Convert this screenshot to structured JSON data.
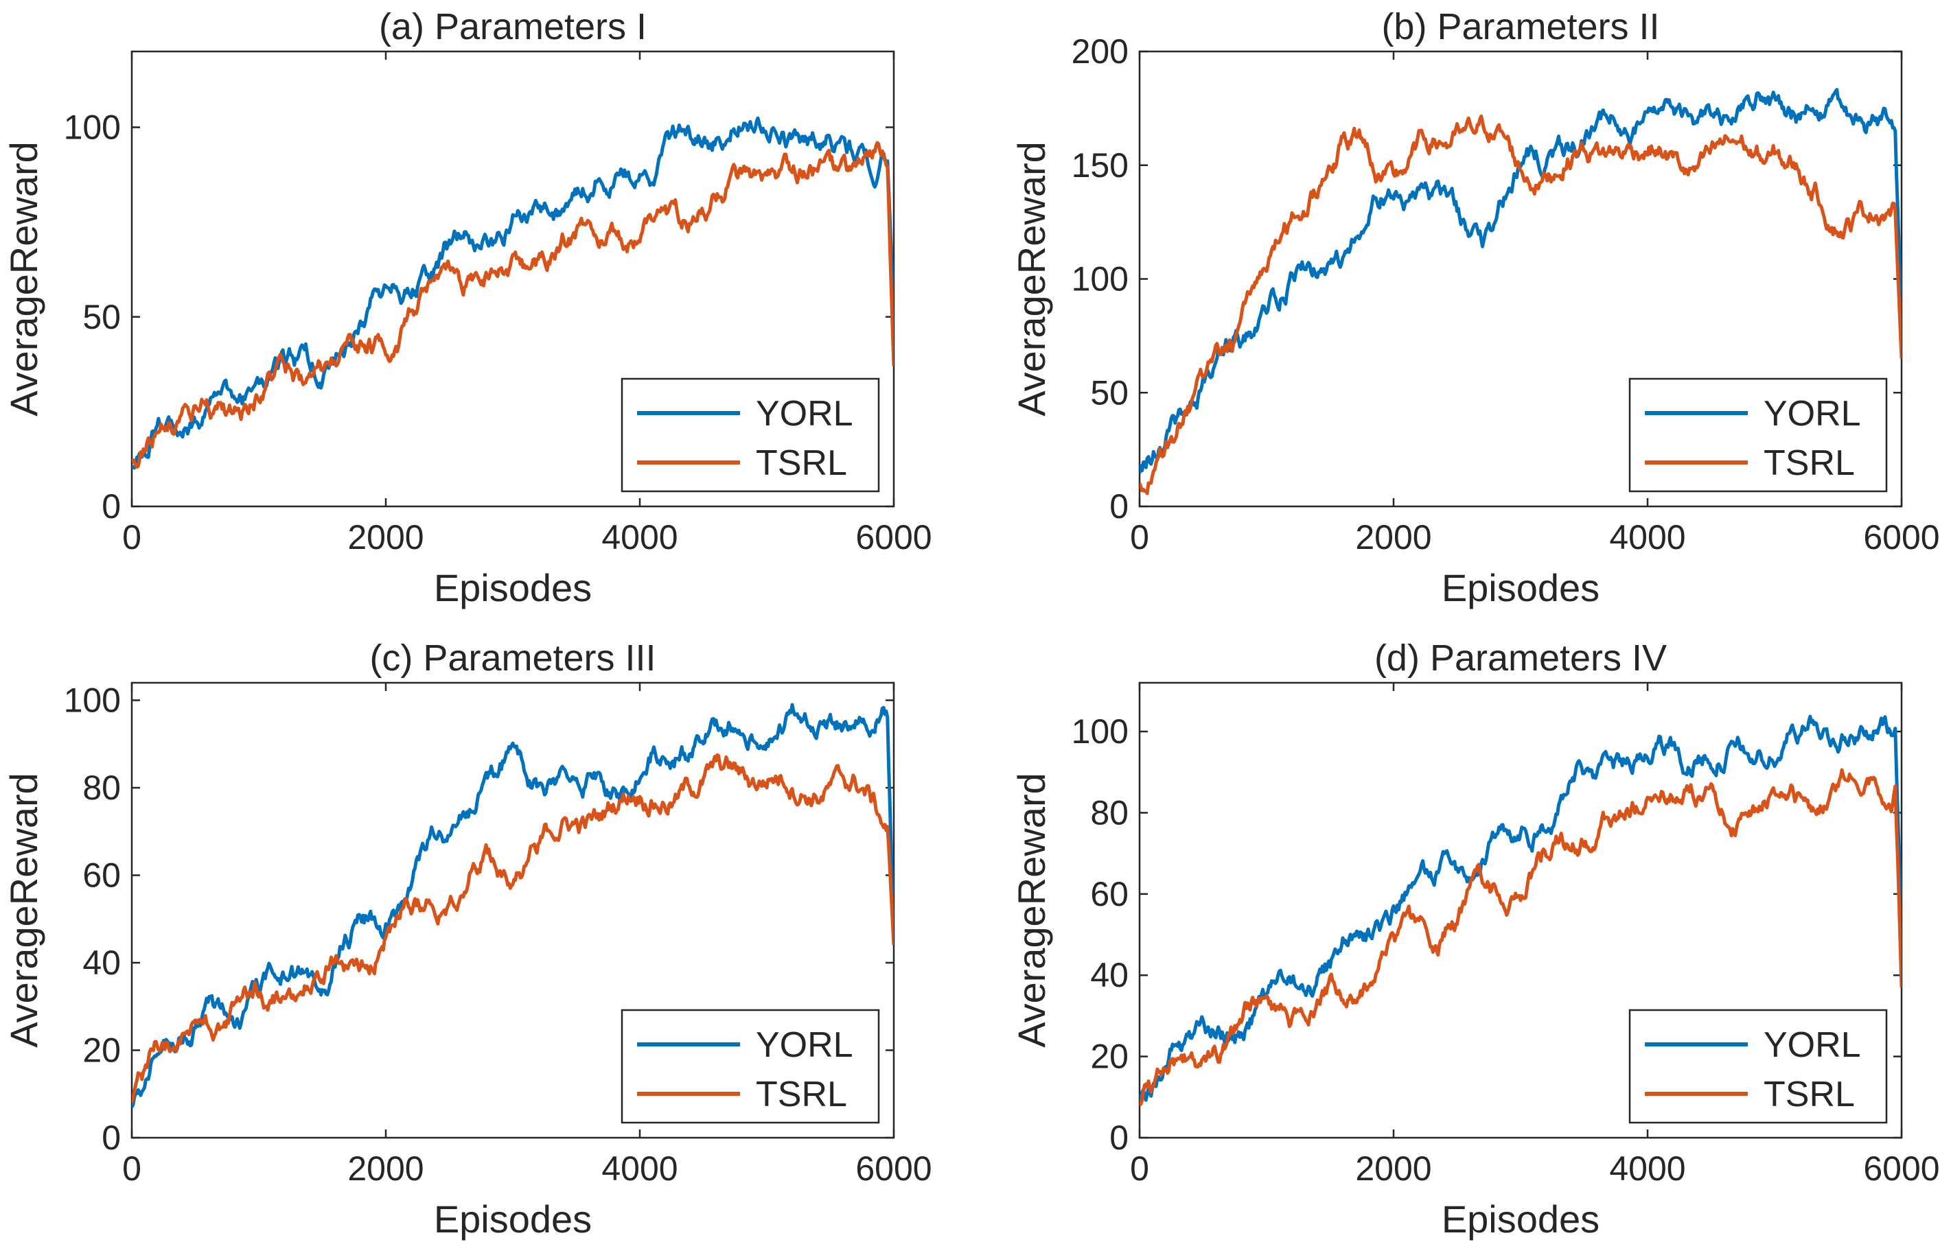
{
  "colors": {
    "yorl": "#0072BD",
    "tsrl": "#D95319",
    "axis": "#262626",
    "background": "#ffffff"
  },
  "chart_data": [
    {
      "type": "line",
      "title": "(a) Parameters I",
      "xlabel": "Episodes",
      "ylabel": "AverageReward",
      "xlim": [
        0,
        6000
      ],
      "ylim": [
        0,
        120
      ],
      "xticks": [
        0,
        2000,
        4000,
        6000
      ],
      "yticks": [
        0,
        50,
        100
      ],
      "legend": {
        "position": "bottom-right",
        "entries": [
          "YORL",
          "TSRL"
        ]
      },
      "grid": false,
      "series": [
        {
          "name": "YORL",
          "x": [
            0,
            250,
            500,
            750,
            1000,
            1250,
            1500,
            1750,
            2000,
            2250,
            2500,
            2750,
            3000,
            3250,
            3500,
            3750,
            4000,
            4250,
            4500,
            4750,
            5000,
            5250,
            5500,
            5750,
            5950,
            6000
          ],
          "values": [
            10,
            22,
            24,
            27,
            31,
            35,
            37,
            44,
            55,
            62,
            66,
            70,
            74,
            80,
            84,
            86,
            88,
            94,
            98,
            102,
            100,
            98,
            96,
            94,
            92,
            50
          ]
        },
        {
          "name": "TSRL",
          "x": [
            0,
            250,
            500,
            750,
            1000,
            1250,
            1500,
            1750,
            2000,
            2250,
            2500,
            2750,
            3000,
            3250,
            3500,
            3750,
            4000,
            4250,
            4500,
            4750,
            5000,
            5250,
            5500,
            5750,
            5950,
            6000
          ],
          "values": [
            10,
            22,
            24,
            27,
            31,
            33,
            36,
            40,
            45,
            50,
            58,
            62,
            63,
            66,
            70,
            71,
            72,
            76,
            80,
            84,
            85,
            86,
            88,
            90,
            88,
            37
          ]
        }
      ]
    },
    {
      "type": "line",
      "title": "(b) Parameters II",
      "xlabel": "Episodes",
      "ylabel": "AverageReward",
      "xlim": [
        0,
        6000
      ],
      "ylim": [
        0,
        200
      ],
      "xticks": [
        0,
        2000,
        4000,
        6000
      ],
      "yticks": [
        0,
        50,
        100,
        150,
        200
      ],
      "legend": {
        "position": "bottom-right",
        "entries": [
          "YORL",
          "TSRL"
        ]
      },
      "grid": false,
      "series": [
        {
          "name": "YORL",
          "x": [
            0,
            250,
            500,
            750,
            1000,
            1250,
            1500,
            1750,
            2000,
            2250,
            2500,
            2750,
            3000,
            3250,
            3500,
            3750,
            4000,
            4250,
            4500,
            4750,
            5000,
            5250,
            5500,
            5750,
            5950,
            6000
          ],
          "values": [
            12,
            35,
            50,
            70,
            85,
            100,
            105,
            120,
            140,
            145,
            125,
            120,
            150,
            155,
            162,
            168,
            170,
            172,
            175,
            178,
            180,
            175,
            170,
            172,
            165,
            80
          ]
        },
        {
          "name": "TSRL",
          "x": [
            0,
            250,
            500,
            750,
            1000,
            1250,
            1500,
            1750,
            2000,
            2250,
            2500,
            2750,
            3000,
            3250,
            3500,
            3750,
            4000,
            4250,
            4500,
            4750,
            5000,
            5250,
            5500,
            5750,
            5950,
            6000
          ],
          "values": [
            12,
            30,
            50,
            75,
            105,
            130,
            155,
            160,
            145,
            155,
            165,
            165,
            148,
            150,
            155,
            160,
            155,
            152,
            150,
            158,
            155,
            140,
            130,
            128,
            130,
            65
          ]
        }
      ]
    },
    {
      "type": "line",
      "title": "(c) Parameters III",
      "xlabel": "Episodes",
      "ylabel": "AverageReward",
      "xlim": [
        0,
        6000
      ],
      "ylim": [
        0,
        104
      ],
      "xticks": [
        0,
        2000,
        4000,
        6000
      ],
      "yticks": [
        0,
        20,
        40,
        60,
        80,
        100
      ],
      "legend": {
        "position": "bottom-right",
        "entries": [
          "YORL",
          "TSRL"
        ]
      },
      "grid": false,
      "series": [
        {
          "name": "YORL",
          "x": [
            0,
            250,
            500,
            750,
            1000,
            1250,
            1500,
            1750,
            2000,
            2250,
            2500,
            2750,
            3000,
            3250,
            3500,
            3750,
            4000,
            4250,
            4500,
            4750,
            5000,
            5250,
            5500,
            5750,
            5950,
            6000
          ],
          "values": [
            8,
            23,
            25,
            28,
            32,
            35,
            38,
            45,
            52,
            60,
            72,
            80,
            85,
            80,
            82,
            80,
            85,
            88,
            92,
            95,
            95,
            96,
            97,
            98,
            95,
            45
          ]
        },
        {
          "name": "TSRL",
          "x": [
            0,
            250,
            500,
            750,
            1000,
            1250,
            1500,
            1750,
            2000,
            2250,
            2500,
            2750,
            3000,
            3250,
            3500,
            3750,
            4000,
            4250,
            4500,
            4750,
            5000,
            5250,
            5500,
            5750,
            5950,
            6000
          ],
          "values": [
            8,
            23,
            25,
            28,
            31,
            35,
            38,
            40,
            48,
            52,
            58,
            62,
            63,
            68,
            72,
            76,
            78,
            80,
            80,
            85,
            82,
            80,
            82,
            78,
            72,
            44
          ]
        }
      ]
    },
    {
      "type": "line",
      "title": "(d) Parameters IV",
      "xlabel": "Episodes",
      "ylabel": "AverageReward",
      "xlim": [
        0,
        6000
      ],
      "ylim": [
        0,
        112
      ],
      "xticks": [
        0,
        2000,
        4000,
        6000
      ],
      "yticks": [
        0,
        20,
        40,
        60,
        80,
        100
      ],
      "legend": {
        "position": "bottom-right",
        "entries": [
          "YORL",
          "TSRL"
        ]
      },
      "grid": false,
      "series": [
        {
          "name": "YORL",
          "x": [
            0,
            250,
            500,
            750,
            1000,
            1250,
            1500,
            1750,
            2000,
            2250,
            2500,
            2750,
            3000,
            3250,
            3500,
            3750,
            4000,
            4250,
            4500,
            4750,
            5000,
            5250,
            5500,
            5750,
            5950,
            6000
          ],
          "values": [
            8,
            22,
            24,
            27,
            32,
            38,
            42,
            48,
            58,
            62,
            68,
            72,
            75,
            80,
            88,
            92,
            95,
            96,
            95,
            94,
            96,
            100,
            102,
            100,
            98,
            52
          ]
        },
        {
          "name": "TSRL",
          "x": [
            0,
            250,
            500,
            750,
            1000,
            1250,
            1500,
            1750,
            2000,
            2250,
            2500,
            2750,
            3000,
            3250,
            3500,
            3750,
            4000,
            4250,
            4500,
            4750,
            5000,
            5250,
            5500,
            5750,
            5950,
            6000
          ],
          "values": [
            8,
            20,
            22,
            26,
            32,
            31,
            35,
            40,
            45,
            50,
            55,
            60,
            64,
            70,
            75,
            78,
            82,
            85,
            82,
            80,
            82,
            85,
            86,
            88,
            90,
            37
          ]
        }
      ]
    }
  ]
}
